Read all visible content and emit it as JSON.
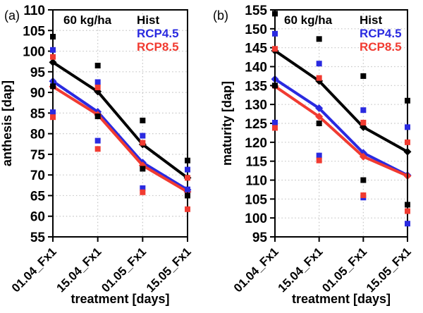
{
  "figure": {
    "panel_labels": [
      "(a)",
      "(b)"
    ],
    "colors": {
      "hist": "#000000",
      "rcp45": "#2a2ae0",
      "rcp85": "#f13b31",
      "grid": "#c4c4c4",
      "frame": "#000000"
    }
  },
  "chart_data": [
    {
      "type": "line",
      "panel_label": "(a)",
      "annotation": "60 kg/ha",
      "ylabel": "anthesis [dap]",
      "xlabel": "treatment [days]",
      "ylim": [
        55,
        110
      ],
      "ytick_step": 5,
      "grid": true,
      "legend_position": "top-inside",
      "categories": [
        "01.04_Fx1",
        "15.04_Fx1",
        "01.05_Fx1",
        "15.05_Fx1"
      ],
      "series": [
        {
          "name": "Hist",
          "color_key": "hist",
          "means": [
            97.3,
            90.2,
            77.4,
            69.3
          ],
          "scatter": [
            [
              103.5,
              91.5
            ],
            [
              96.5,
              84.2
            ],
            [
              83.2,
              71.5
            ],
            [
              73.5,
              65.0
            ]
          ]
        },
        {
          "name": "RCP4.5",
          "color_key": "rcp45",
          "means": [
            92.7,
            85.3,
            73.0,
            66.4
          ],
          "scatter": [
            [
              100.3,
              85.2
            ],
            [
              92.5,
              78.3
            ],
            [
              79.5,
              66.8
            ],
            [
              71.3,
              66.5
            ]
          ]
        },
        {
          "name": "RCP8.5",
          "color_key": "rcp85",
          "means": [
            91.4,
            84.6,
            72.3,
            65.9
          ],
          "scatter": [
            [
              98.6,
              84.0
            ],
            [
              91.2,
              76.3
            ],
            [
              77.8,
              65.8
            ],
            [
              69.3,
              61.7
            ]
          ]
        }
      ]
    },
    {
      "type": "line",
      "panel_label": "(b)",
      "annotation": "60 kg/ha",
      "ylabel": "maturity [dap]",
      "xlabel": "treatment [days]",
      "ylim": [
        95,
        155
      ],
      "ytick_step": 5,
      "grid": true,
      "legend_position": "top-inside",
      "categories": [
        "01.04_Fx1",
        "15.04_Fx1",
        "01.05_Fx1",
        "15.05_Fx1"
      ],
      "series": [
        {
          "name": "Hist",
          "color_key": "hist",
          "means": [
            144.2,
            136.2,
            124.0,
            117.5
          ],
          "scatter": [
            [
              154.0,
              135.0
            ],
            [
              147.3,
              125.0
            ],
            [
              137.5,
              110.0
            ],
            [
              131.0,
              103.5
            ]
          ]
        },
        {
          "name": "RCP4.5",
          "color_key": "rcp45",
          "means": [
            136.7,
            129.0,
            117.2,
            111.3
          ],
          "scatter": [
            [
              148.7,
              125.2
            ],
            [
              140.8,
              116.5
            ],
            [
              128.5,
              105.4
            ],
            [
              124.0,
              98.5
            ]
          ]
        },
        {
          "name": "RCP8.5",
          "color_key": "rcp85",
          "means": [
            134.8,
            126.8,
            116.2,
            111.1
          ],
          "scatter": [
            [
              144.7,
              123.8
            ],
            [
              137.0,
              115.2
            ],
            [
              125.2,
              106.0
            ],
            [
              120.0,
              101.8
            ]
          ]
        }
      ]
    }
  ]
}
